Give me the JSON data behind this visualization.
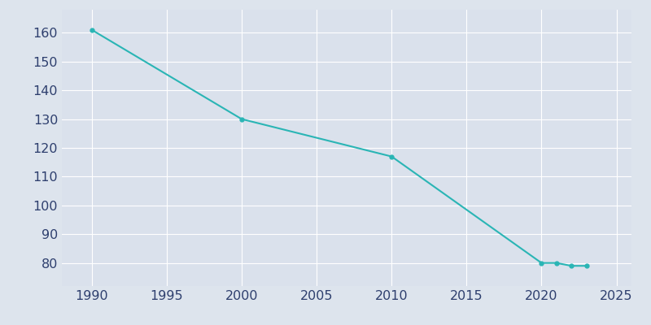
{
  "years": [
    1990,
    2000,
    2010,
    2020,
    2021,
    2022,
    2023
  ],
  "population": [
    161,
    130,
    117,
    80,
    80,
    79,
    79
  ],
  "line_color": "#2ab5b5",
  "marker": "o",
  "marker_size": 3.5,
  "line_width": 1.5,
  "xlim": [
    1988,
    2026
  ],
  "ylim": [
    72,
    168
  ],
  "xticks": [
    1990,
    1995,
    2000,
    2005,
    2010,
    2015,
    2020,
    2025
  ],
  "yticks": [
    80,
    90,
    100,
    110,
    120,
    130,
    140,
    150,
    160
  ],
  "background_color": "#dde4ed",
  "axes_background_color": "#dae1ec",
  "grid_color": "#ffffff",
  "tick_label_color": "#2e3f6e",
  "tick_label_fontsize": 11.5
}
